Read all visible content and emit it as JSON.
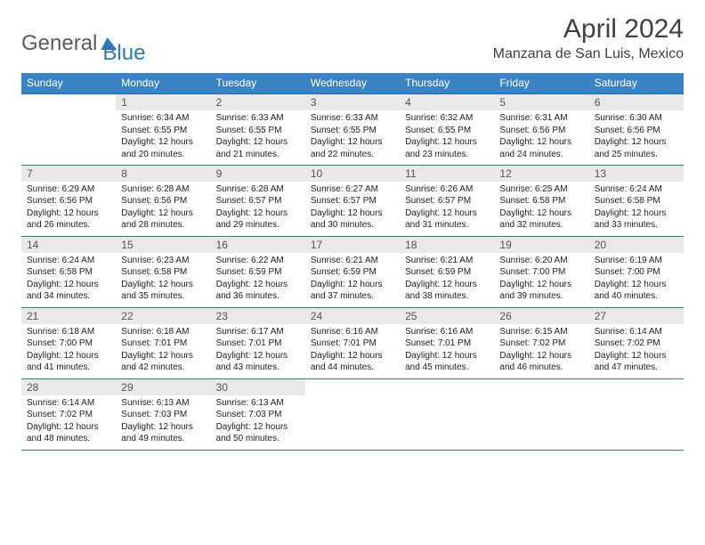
{
  "brand": {
    "text1": "General",
    "text2": "Blue"
  },
  "title": "April 2024",
  "location": "Manzana de San Luis, Mexico",
  "colors": {
    "header_bg": "#3b84c4",
    "header_border": "#2e78b8",
    "daynum_bg": "#e9e9e9",
    "text": "#222222",
    "brand_grey": "#5b5b5b",
    "brand_blue": "#2e78b8"
  },
  "daynames": [
    "Sunday",
    "Monday",
    "Tuesday",
    "Wednesday",
    "Thursday",
    "Friday",
    "Saturday"
  ],
  "weeks": [
    [
      null,
      {
        "n": "1",
        "sr": "6:34 AM",
        "ss": "6:55 PM",
        "dl": "12 hours and 20 minutes."
      },
      {
        "n": "2",
        "sr": "6:33 AM",
        "ss": "6:55 PM",
        "dl": "12 hours and 21 minutes."
      },
      {
        "n": "3",
        "sr": "6:33 AM",
        "ss": "6:55 PM",
        "dl": "12 hours and 22 minutes."
      },
      {
        "n": "4",
        "sr": "6:32 AM",
        "ss": "6:55 PM",
        "dl": "12 hours and 23 minutes."
      },
      {
        "n": "5",
        "sr": "6:31 AM",
        "ss": "6:56 PM",
        "dl": "12 hours and 24 minutes."
      },
      {
        "n": "6",
        "sr": "6:30 AM",
        "ss": "6:56 PM",
        "dl": "12 hours and 25 minutes."
      }
    ],
    [
      {
        "n": "7",
        "sr": "6:29 AM",
        "ss": "6:56 PM",
        "dl": "12 hours and 26 minutes."
      },
      {
        "n": "8",
        "sr": "6:28 AM",
        "ss": "6:56 PM",
        "dl": "12 hours and 28 minutes."
      },
      {
        "n": "9",
        "sr": "6:28 AM",
        "ss": "6:57 PM",
        "dl": "12 hours and 29 minutes."
      },
      {
        "n": "10",
        "sr": "6:27 AM",
        "ss": "6:57 PM",
        "dl": "12 hours and 30 minutes."
      },
      {
        "n": "11",
        "sr": "6:26 AM",
        "ss": "6:57 PM",
        "dl": "12 hours and 31 minutes."
      },
      {
        "n": "12",
        "sr": "6:25 AM",
        "ss": "6:58 PM",
        "dl": "12 hours and 32 minutes."
      },
      {
        "n": "13",
        "sr": "6:24 AM",
        "ss": "6:58 PM",
        "dl": "12 hours and 33 minutes."
      }
    ],
    [
      {
        "n": "14",
        "sr": "6:24 AM",
        "ss": "6:58 PM",
        "dl": "12 hours and 34 minutes."
      },
      {
        "n": "15",
        "sr": "6:23 AM",
        "ss": "6:58 PM",
        "dl": "12 hours and 35 minutes."
      },
      {
        "n": "16",
        "sr": "6:22 AM",
        "ss": "6:59 PM",
        "dl": "12 hours and 36 minutes."
      },
      {
        "n": "17",
        "sr": "6:21 AM",
        "ss": "6:59 PM",
        "dl": "12 hours and 37 minutes."
      },
      {
        "n": "18",
        "sr": "6:21 AM",
        "ss": "6:59 PM",
        "dl": "12 hours and 38 minutes."
      },
      {
        "n": "19",
        "sr": "6:20 AM",
        "ss": "7:00 PM",
        "dl": "12 hours and 39 minutes."
      },
      {
        "n": "20",
        "sr": "6:19 AM",
        "ss": "7:00 PM",
        "dl": "12 hours and 40 minutes."
      }
    ],
    [
      {
        "n": "21",
        "sr": "6:18 AM",
        "ss": "7:00 PM",
        "dl": "12 hours and 41 minutes."
      },
      {
        "n": "22",
        "sr": "6:18 AM",
        "ss": "7:01 PM",
        "dl": "12 hours and 42 minutes."
      },
      {
        "n": "23",
        "sr": "6:17 AM",
        "ss": "7:01 PM",
        "dl": "12 hours and 43 minutes."
      },
      {
        "n": "24",
        "sr": "6:16 AM",
        "ss": "7:01 PM",
        "dl": "12 hours and 44 minutes."
      },
      {
        "n": "25",
        "sr": "6:16 AM",
        "ss": "7:01 PM",
        "dl": "12 hours and 45 minutes."
      },
      {
        "n": "26",
        "sr": "6:15 AM",
        "ss": "7:02 PM",
        "dl": "12 hours and 46 minutes."
      },
      {
        "n": "27",
        "sr": "6:14 AM",
        "ss": "7:02 PM",
        "dl": "12 hours and 47 minutes."
      }
    ],
    [
      {
        "n": "28",
        "sr": "6:14 AM",
        "ss": "7:02 PM",
        "dl": "12 hours and 48 minutes."
      },
      {
        "n": "29",
        "sr": "6:13 AM",
        "ss": "7:03 PM",
        "dl": "12 hours and 49 minutes."
      },
      {
        "n": "30",
        "sr": "6:13 AM",
        "ss": "7:03 PM",
        "dl": "12 hours and 50 minutes."
      },
      null,
      null,
      null,
      null
    ]
  ],
  "labels": {
    "sunrise": "Sunrise:",
    "sunset": "Sunset:",
    "daylight": "Daylight:"
  }
}
